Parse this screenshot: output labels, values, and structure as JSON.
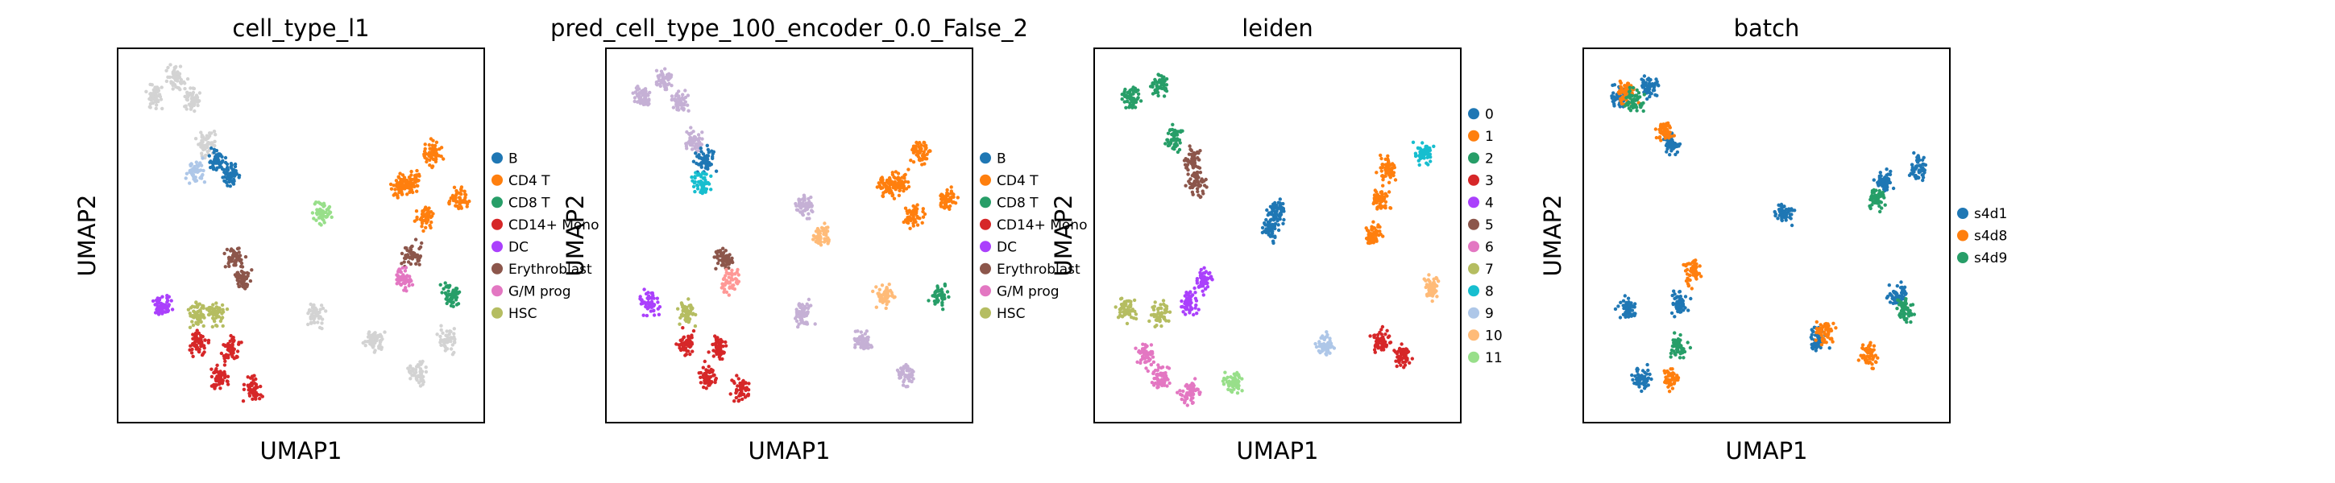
{
  "chart_data": [
    {
      "type": "scatter",
      "title": "cell_type_l1",
      "xlabel": "UMAP1",
      "ylabel": "UMAP2",
      "legend": {
        "placement": "right",
        "entries": [
          {
            "name": "B",
            "color": "#1f77b4"
          },
          {
            "name": "CD4 T",
            "color": "#ff7f0e"
          },
          {
            "name": "CD8 T",
            "color": "#279e68"
          },
          {
            "name": "CD14+ Mono",
            "color": "#d62728"
          },
          {
            "name": "DC",
            "color": "#aa40fc"
          },
          {
            "name": "Erythroblast",
            "color": "#8c564b"
          },
          {
            "name": "G/M prog",
            "color": "#e377c2"
          },
          {
            "name": "HSC",
            "color": "#b5bd61"
          }
        ]
      },
      "series": [
        {
          "name": "",
          "color": "#d3d3d3",
          "points": [
            [
              0.1,
              0.87
            ],
            [
              0.16,
              0.92
            ],
            [
              0.24,
              0.75
            ],
            [
              0.54,
              0.29
            ],
            [
              0.7,
              0.22
            ],
            [
              0.82,
              0.13
            ],
            [
              0.9,
              0.22
            ],
            [
              0.2,
              0.86
            ]
          ]
        },
        {
          "name": "B",
          "color": "#1f77b4",
          "points": [
            [
              0.27,
              0.7
            ],
            [
              0.31,
              0.66
            ]
          ]
        },
        {
          "name": "CD4 T",
          "color": "#ff7f0e",
          "points": [
            [
              0.8,
              0.64
            ],
            [
              0.86,
              0.72
            ],
            [
              0.93,
              0.6
            ],
            [
              0.84,
              0.55
            ],
            [
              0.77,
              0.63
            ]
          ]
        },
        {
          "name": "CD8 T",
          "color": "#279e68",
          "points": [
            [
              0.91,
              0.34
            ]
          ]
        },
        {
          "name": "CD14+ Mono",
          "color": "#d62728",
          "points": [
            [
              0.28,
              0.12
            ],
            [
              0.22,
              0.21
            ],
            [
              0.37,
              0.09
            ],
            [
              0.31,
              0.2
            ]
          ]
        },
        {
          "name": "DC",
          "color": "#aa40fc",
          "points": [
            [
              0.12,
              0.32
            ]
          ]
        },
        {
          "name": "Erythroblast",
          "color": "#8c564b",
          "points": [
            [
              0.32,
              0.44
            ],
            [
              0.34,
              0.38
            ],
            [
              0.8,
              0.45
            ]
          ]
        },
        {
          "name": "G/M prog",
          "color": "#e377c2",
          "points": [
            [
              0.78,
              0.38
            ]
          ]
        },
        {
          "name": "HSC",
          "color": "#b5bd61",
          "points": [
            [
              0.22,
              0.29
            ],
            [
              0.27,
              0.29
            ]
          ]
        },
        {
          "name": "",
          "color": "#98df8a",
          "points": [
            [
              0.56,
              0.56
            ]
          ]
        },
        {
          "name": "",
          "color": "#aec7e8",
          "points": [
            [
              0.21,
              0.67
            ]
          ]
        }
      ]
    },
    {
      "type": "scatter",
      "title": "pred_cell_type_100_encoder_0.0_False_2",
      "xlabel": "UMAP1",
      "ylabel": "UMAP2",
      "legend": {
        "placement": "right",
        "entries": [
          {
            "name": "B",
            "color": "#1f77b4"
          },
          {
            "name": "CD4 T",
            "color": "#ff7f0e"
          },
          {
            "name": "CD8 T",
            "color": "#279e68"
          },
          {
            "name": "CD14+ Mono",
            "color": "#d62728"
          },
          {
            "name": "DC",
            "color": "#aa40fc"
          },
          {
            "name": "Erythroblast",
            "color": "#8c564b"
          },
          {
            "name": "G/M prog",
            "color": "#e377c2"
          },
          {
            "name": "HSC",
            "color": "#b5bd61"
          }
        ]
      },
      "series": [
        {
          "name": "",
          "color": "#c5b0d5",
          "points": [
            [
              0.1,
              0.87
            ],
            [
              0.16,
              0.92
            ],
            [
              0.24,
              0.75
            ],
            [
              0.54,
              0.29
            ],
            [
              0.7,
              0.22
            ],
            [
              0.82,
              0.13
            ],
            [
              0.54,
              0.58
            ],
            [
              0.2,
              0.86
            ]
          ]
        },
        {
          "name": "B",
          "color": "#1f77b4",
          "points": [
            [
              0.27,
              0.7
            ]
          ]
        },
        {
          "name": "",
          "color": "#17becf",
          "points": [
            [
              0.26,
              0.64
            ]
          ]
        },
        {
          "name": "CD4 T",
          "color": "#ff7f0e",
          "points": [
            [
              0.8,
              0.64
            ],
            [
              0.86,
              0.72
            ],
            [
              0.93,
              0.6
            ],
            [
              0.84,
              0.55
            ],
            [
              0.77,
              0.63
            ]
          ]
        },
        {
          "name": "CD8 T",
          "color": "#279e68",
          "points": [
            [
              0.91,
              0.34
            ]
          ]
        },
        {
          "name": "CD14+ Mono",
          "color": "#d62728",
          "points": [
            [
              0.28,
              0.12
            ],
            [
              0.22,
              0.21
            ],
            [
              0.37,
              0.09
            ],
            [
              0.31,
              0.2
            ]
          ]
        },
        {
          "name": "DC",
          "color": "#aa40fc",
          "points": [
            [
              0.12,
              0.32
            ]
          ]
        },
        {
          "name": "Erythroblast",
          "color": "#8c564b",
          "points": [
            [
              0.32,
              0.44
            ]
          ]
        },
        {
          "name": "",
          "color": "#ff9896",
          "points": [
            [
              0.34,
              0.38
            ]
          ]
        },
        {
          "name": "",
          "color": "#ffbb78",
          "points": [
            [
              0.59,
              0.5
            ],
            [
              0.76,
              0.34
            ]
          ]
        },
        {
          "name": "HSC",
          "color": "#b5bd61",
          "points": [
            [
              0.22,
              0.29
            ]
          ]
        }
      ]
    },
    {
      "type": "scatter",
      "title": "leiden",
      "xlabel": "UMAP1",
      "ylabel": "UMAP2",
      "legend": {
        "placement": "right",
        "entries": [
          {
            "name": "0",
            "color": "#1f77b4"
          },
          {
            "name": "1",
            "color": "#ff7f0e"
          },
          {
            "name": "2",
            "color": "#279e68"
          },
          {
            "name": "3",
            "color": "#d62728"
          },
          {
            "name": "4",
            "color": "#aa40fc"
          },
          {
            "name": "5",
            "color": "#8c564b"
          },
          {
            "name": "6",
            "color": "#e377c2"
          },
          {
            "name": "7",
            "color": "#b5bd61"
          },
          {
            "name": "8",
            "color": "#17becf"
          },
          {
            "name": "9",
            "color": "#aec7e8"
          },
          {
            "name": "10",
            "color": "#ffbb78"
          },
          {
            "name": "11",
            "color": "#98df8a"
          }
        ]
      },
      "series": [
        {
          "name": "0",
          "color": "#1f77b4",
          "points": [
            [
              0.5,
              0.56
            ],
            [
              0.48,
              0.52
            ]
          ]
        },
        {
          "name": "1",
          "color": "#ff7f0e",
          "points": [
            [
              0.78,
              0.6
            ],
            [
              0.76,
              0.5
            ],
            [
              0.8,
              0.68
            ]
          ]
        },
        {
          "name": "2",
          "color": "#279e68",
          "points": [
            [
              0.1,
              0.87
            ],
            [
              0.18,
              0.9
            ],
            [
              0.22,
              0.76
            ]
          ]
        },
        {
          "name": "3",
          "color": "#d62728",
          "points": [
            [
              0.78,
              0.22
            ],
            [
              0.84,
              0.18
            ]
          ]
        },
        {
          "name": "4",
          "color": "#aa40fc",
          "points": [
            [
              0.3,
              0.38
            ],
            [
              0.26,
              0.32
            ]
          ]
        },
        {
          "name": "5",
          "color": "#8c564b",
          "points": [
            [
              0.27,
              0.7
            ],
            [
              0.28,
              0.64
            ]
          ]
        },
        {
          "name": "6",
          "color": "#e377c2",
          "points": [
            [
              0.18,
              0.12
            ],
            [
              0.14,
              0.18
            ],
            [
              0.26,
              0.08
            ]
          ]
        },
        {
          "name": "7",
          "color": "#b5bd61",
          "points": [
            [
              0.09,
              0.3
            ],
            [
              0.18,
              0.29
            ]
          ]
        },
        {
          "name": "8",
          "color": "#17becf",
          "points": [
            [
              0.9,
              0.72
            ]
          ]
        },
        {
          "name": "9",
          "color": "#aec7e8",
          "points": [
            [
              0.63,
              0.21
            ]
          ]
        },
        {
          "name": "10",
          "color": "#ffbb78",
          "points": [
            [
              0.92,
              0.36
            ]
          ]
        },
        {
          "name": "11",
          "color": "#98df8a",
          "points": [
            [
              0.38,
              0.11
            ]
          ]
        }
      ]
    },
    {
      "type": "scatter",
      "title": "batch",
      "xlabel": "UMAP1",
      "ylabel": "UMAP2",
      "legend": {
        "placement": "right",
        "entries": [
          {
            "name": "s4d1",
            "color": "#1f77b4"
          },
          {
            "name": "s4d8",
            "color": "#ff7f0e"
          },
          {
            "name": "s4d9",
            "color": "#279e68"
          }
        ]
      },
      "series": [
        {
          "name": "s4d1",
          "color": "#1f77b4",
          "points": [
            [
              0.1,
              0.87
            ],
            [
              0.18,
              0.9
            ],
            [
              0.24,
              0.75
            ],
            [
              0.55,
              0.56
            ],
            [
              0.82,
              0.64
            ],
            [
              0.92,
              0.68
            ],
            [
              0.16,
              0.12
            ],
            [
              0.26,
              0.32
            ],
            [
              0.12,
              0.3
            ],
            [
              0.64,
              0.22
            ],
            [
              0.86,
              0.34
            ]
          ]
        },
        {
          "name": "s4d8",
          "color": "#ff7f0e",
          "points": [
            [
              0.12,
              0.88
            ],
            [
              0.22,
              0.78
            ],
            [
              0.78,
              0.18
            ],
            [
              0.66,
              0.24
            ],
            [
              0.24,
              0.12
            ],
            [
              0.3,
              0.4
            ]
          ]
        },
        {
          "name": "s4d9",
          "color": "#279e68",
          "points": [
            [
              0.14,
              0.86
            ],
            [
              0.26,
              0.2
            ],
            [
              0.88,
              0.3
            ],
            [
              0.8,
              0.6
            ]
          ]
        }
      ]
    }
  ]
}
